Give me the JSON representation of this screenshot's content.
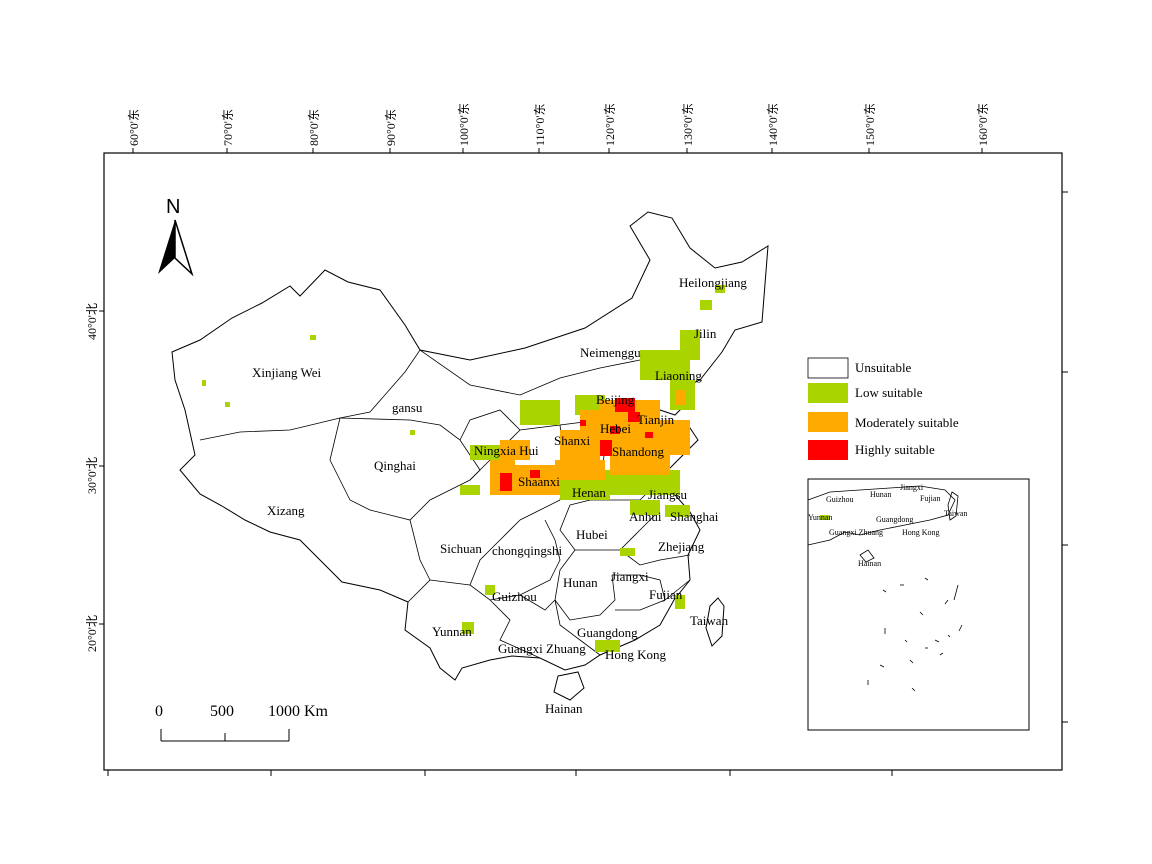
{
  "top_ticks": [
    "60°0'东",
    "70°0'东",
    "80°0'东",
    "90°0'东",
    "100°0'东",
    "110°0'东",
    "120°0'东",
    "130°0'东",
    "140°0'东",
    "150°0'东",
    "160°0'东"
  ],
  "left_ticks": [
    "40°0'北",
    "30°0'北",
    "20°0'北"
  ],
  "north_label": "N",
  "provinces": [
    "Heilongjiang",
    "Jilin",
    "Neimenggu",
    "Liaoning",
    "Xinjiang Wei",
    "gansu",
    "Beijing",
    "Tianjin",
    "Hebei",
    "Shanxi",
    "Ningxia Hui",
    "Shandong",
    "Qinghai",
    "Shaanxi",
    "Henan",
    "Jiangsu",
    "Xizang",
    "Anhui",
    "Shanghai",
    "Hubei",
    "Sichuan",
    "chongqingshi",
    "Zhejiang",
    "Hunan",
    "Jiangxi",
    "Guizhou",
    "Fujian",
    "Taiwan",
    "Yunnan",
    "Guangdong",
    "Guangxi Zhuang",
    "Hong Kong",
    "Hainan"
  ],
  "legend": [
    {
      "label": "Unsuitable",
      "color": "#ffffff"
    },
    {
      "label": "Low suitable",
      "color": "#aad400"
    },
    {
      "label": "Moderately suitable",
      "color": "#ffaa00"
    },
    {
      "label": "Highly suitable",
      "color": "#ff0000"
    }
  ],
  "inset_labels": [
    "Jiangxi",
    "Guizhou",
    "Hunan",
    "Fujian",
    "Yunnan",
    "Taiwan",
    "Guangdong",
    "Guangxi Zhuang",
    "Hong Kong",
    "Hainan"
  ],
  "scale_labels": [
    "0",
    "500",
    "1000 Km"
  ]
}
